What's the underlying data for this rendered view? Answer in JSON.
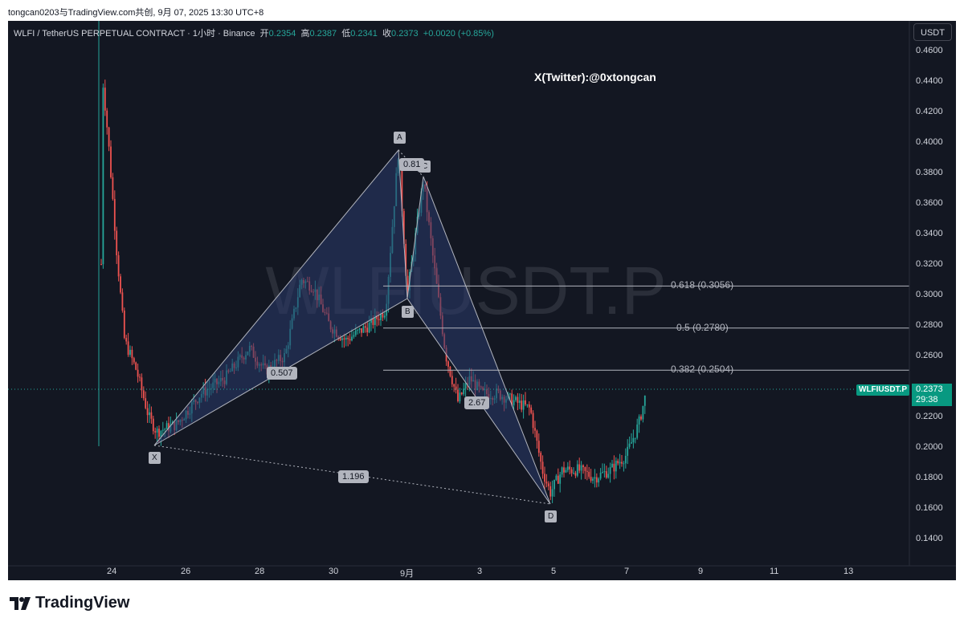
{
  "topbar": {
    "text": "tongcan0203与TradingView.com共创, 9月 07, 2025 13:30 UTC+8"
  },
  "symbol": {
    "name": "WLFI / TetherUS PERPETUAL CONTRACT · 1小时 · Binance",
    "open_label": "开",
    "open": "0.2354",
    "high_label": "高",
    "high": "0.2387",
    "low_label": "低",
    "low": "0.2341",
    "close_label": "收",
    "close": "0.2373",
    "change": "+0.0020 (+0.85%)"
  },
  "currency_button": "USDT",
  "watermark": "WLFIUSDT.P",
  "handle": "X(Twitter):@0xtongcan",
  "y_axis": [
    "0.4600",
    "0.4400",
    "0.4200",
    "0.4000",
    "0.3800",
    "0.3600",
    "0.3400",
    "0.3200",
    "0.3000",
    "0.2800",
    "0.2600",
    "0.2200",
    "0.2000",
    "0.1800",
    "0.1600",
    "0.1400"
  ],
  "x_axis": [
    "24",
    "26",
    "28",
    "30",
    "9月",
    "3",
    "5",
    "7",
    "9",
    "11",
    "13"
  ],
  "last_price": {
    "symbol": "WLFIUSDT.P",
    "price": "0.2373",
    "countdown": "29:38"
  },
  "pattern": {
    "points": [
      "X",
      "A",
      "B",
      "C",
      "D"
    ],
    "ratios": {
      "xab": "0.507",
      "abc": "0.81",
      "bcd": "2.67",
      "xad": "1.196"
    }
  },
  "fib_levels": [
    {
      "label": "0.618 (0.3056)",
      "value": 0.3056
    },
    {
      "label": "0.5 (0.2780)",
      "value": 0.278
    },
    {
      "label": "0.382 (0.2504)",
      "value": 0.2504
    }
  ],
  "colors": {
    "bg": "#131722",
    "up": "#26a69a",
    "down": "#ef5350",
    "pattern_fill": "#2a3a6b",
    "accent": "#089981"
  },
  "brand": "TradingView"
}
